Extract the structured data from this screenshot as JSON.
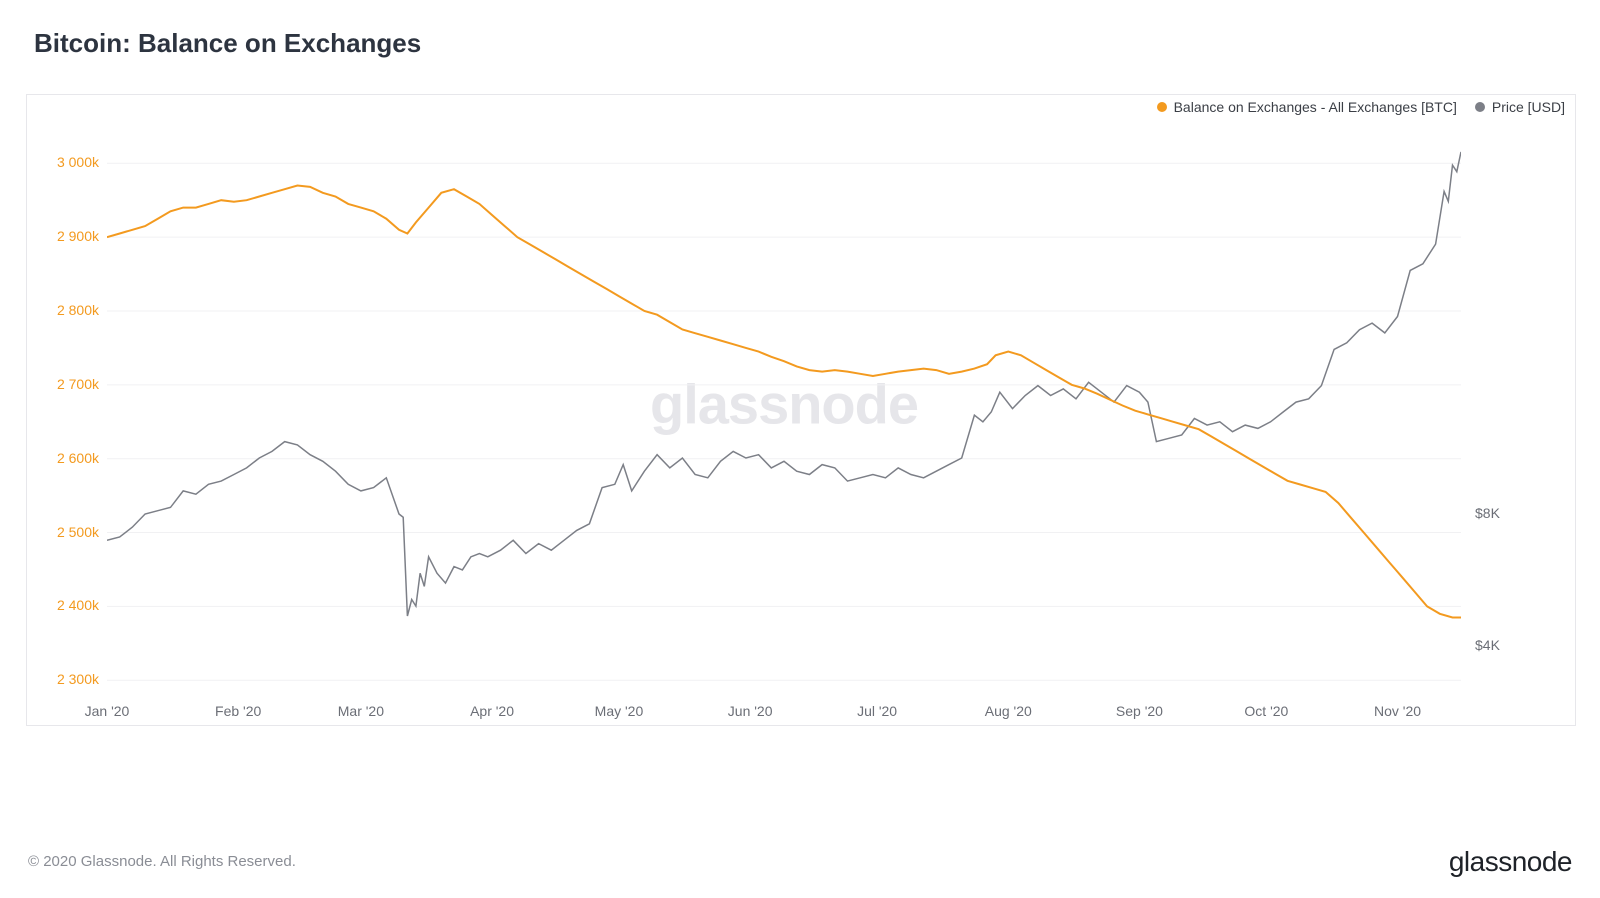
{
  "title": "Bitcoin: Balance on Exchanges",
  "watermark": "glassnode",
  "footer_copyright": "© 2020 Glassnode. All Rights Reserved.",
  "footer_brand": "glassnode",
  "legend": {
    "balance_label": "Balance on Exchanges - All Exchanges [BTC]",
    "price_label": "Price [USD]"
  },
  "chart": {
    "type": "line-dual-axis",
    "background_color": "#ffffff",
    "border_color": "#e7e7eb",
    "grid_color": "#f1f1f3",
    "balance_color": "#f39a1f",
    "price_color": "#7c7f87",
    "left_axis_label_color": "#f39a1f",
    "right_axis_label_color": "#6b6e76",
    "x_axis_label_color": "#6b6e76",
    "line_width_balance": 2,
    "line_width_price": 1.5,
    "title_fontsize": 26,
    "tick_fontsize": 14,
    "watermark_fontsize": 56,
    "watermark_color": "#e6e6ea",
    "x": {
      "min": 0,
      "max": 320,
      "ticks": [
        {
          "pos": 0,
          "label": "Jan '20"
        },
        {
          "pos": 31,
          "label": "Feb '20"
        },
        {
          "pos": 60,
          "label": "Mar '20"
        },
        {
          "pos": 91,
          "label": "Apr '20"
        },
        {
          "pos": 121,
          "label": "May '20"
        },
        {
          "pos": 152,
          "label": "Jun '20"
        },
        {
          "pos": 182,
          "label": "Jul '20"
        },
        {
          "pos": 213,
          "label": "Aug '20"
        },
        {
          "pos": 244,
          "label": "Sep '20"
        },
        {
          "pos": 274,
          "label": "Oct '20"
        },
        {
          "pos": 305,
          "label": "Nov '20"
        }
      ]
    },
    "y_left": {
      "min": 2280,
      "max": 3060,
      "ticks": [
        {
          "v": 2300,
          "label": "2 300k"
        },
        {
          "v": 2400,
          "label": "2 400k"
        },
        {
          "v": 2500,
          "label": "2 500k"
        },
        {
          "v": 2600,
          "label": "2 600k"
        },
        {
          "v": 2700,
          "label": "2 700k"
        },
        {
          "v": 2800,
          "label": "2 800k"
        },
        {
          "v": 2900,
          "label": "2 900k"
        },
        {
          "v": 3000,
          "label": "3 000k"
        }
      ]
    },
    "y_right": {
      "min": 2500,
      "max": 20000,
      "ticks": [
        {
          "v": 4000,
          "label": "$4K"
        },
        {
          "v": 8000,
          "label": "$8K"
        }
      ]
    },
    "series_balance": [
      [
        0,
        2900
      ],
      [
        3,
        2905
      ],
      [
        6,
        2910
      ],
      [
        9,
        2915
      ],
      [
        12,
        2925
      ],
      [
        15,
        2935
      ],
      [
        18,
        2940
      ],
      [
        21,
        2940
      ],
      [
        24,
        2945
      ],
      [
        27,
        2950
      ],
      [
        30,
        2948
      ],
      [
        33,
        2950
      ],
      [
        36,
        2955
      ],
      [
        39,
        2960
      ],
      [
        42,
        2965
      ],
      [
        45,
        2970
      ],
      [
        48,
        2968
      ],
      [
        51,
        2960
      ],
      [
        54,
        2955
      ],
      [
        57,
        2945
      ],
      [
        60,
        2940
      ],
      [
        63,
        2935
      ],
      [
        66,
        2925
      ],
      [
        69,
        2910
      ],
      [
        71,
        2905
      ],
      [
        73,
        2920
      ],
      [
        76,
        2940
      ],
      [
        79,
        2960
      ],
      [
        82,
        2965
      ],
      [
        85,
        2955
      ],
      [
        88,
        2945
      ],
      [
        91,
        2930
      ],
      [
        94,
        2915
      ],
      [
        97,
        2900
      ],
      [
        100,
        2890
      ],
      [
        103,
        2880
      ],
      [
        106,
        2870
      ],
      [
        109,
        2860
      ],
      [
        112,
        2850
      ],
      [
        115,
        2840
      ],
      [
        118,
        2830
      ],
      [
        121,
        2820
      ],
      [
        124,
        2810
      ],
      [
        127,
        2800
      ],
      [
        130,
        2795
      ],
      [
        133,
        2785
      ],
      [
        136,
        2775
      ],
      [
        139,
        2770
      ],
      [
        142,
        2765
      ],
      [
        145,
        2760
      ],
      [
        148,
        2755
      ],
      [
        151,
        2750
      ],
      [
        154,
        2745
      ],
      [
        157,
        2738
      ],
      [
        160,
        2732
      ],
      [
        163,
        2725
      ],
      [
        166,
        2720
      ],
      [
        169,
        2718
      ],
      [
        172,
        2720
      ],
      [
        175,
        2718
      ],
      [
        178,
        2715
      ],
      [
        181,
        2712
      ],
      [
        184,
        2715
      ],
      [
        187,
        2718
      ],
      [
        190,
        2720
      ],
      [
        193,
        2722
      ],
      [
        196,
        2720
      ],
      [
        199,
        2715
      ],
      [
        202,
        2718
      ],
      [
        205,
        2722
      ],
      [
        208,
        2728
      ],
      [
        210,
        2740
      ],
      [
        213,
        2745
      ],
      [
        216,
        2740
      ],
      [
        219,
        2730
      ],
      [
        222,
        2720
      ],
      [
        225,
        2710
      ],
      [
        228,
        2700
      ],
      [
        231,
        2695
      ],
      [
        234,
        2688
      ],
      [
        237,
        2680
      ],
      [
        240,
        2672
      ],
      [
        243,
        2665
      ],
      [
        246,
        2660
      ],
      [
        249,
        2655
      ],
      [
        252,
        2650
      ],
      [
        255,
        2645
      ],
      [
        258,
        2640
      ],
      [
        261,
        2630
      ],
      [
        264,
        2620
      ],
      [
        267,
        2610
      ],
      [
        270,
        2600
      ],
      [
        273,
        2590
      ],
      [
        276,
        2580
      ],
      [
        279,
        2570
      ],
      [
        282,
        2565
      ],
      [
        285,
        2560
      ],
      [
        288,
        2555
      ],
      [
        291,
        2540
      ],
      [
        294,
        2520
      ],
      [
        297,
        2500
      ],
      [
        300,
        2480
      ],
      [
        303,
        2460
      ],
      [
        306,
        2440
      ],
      [
        309,
        2420
      ],
      [
        312,
        2400
      ],
      [
        315,
        2390
      ],
      [
        318,
        2385
      ],
      [
        320,
        2385
      ]
    ],
    "series_price": [
      [
        0,
        7200
      ],
      [
        3,
        7300
      ],
      [
        6,
        7600
      ],
      [
        9,
        8000
      ],
      [
        12,
        8100
      ],
      [
        15,
        8200
      ],
      [
        18,
        8700
      ],
      [
        21,
        8600
      ],
      [
        24,
        8900
      ],
      [
        27,
        9000
      ],
      [
        30,
        9200
      ],
      [
        33,
        9400
      ],
      [
        36,
        9700
      ],
      [
        39,
        9900
      ],
      [
        42,
        10200
      ],
      [
        45,
        10100
      ],
      [
        48,
        9800
      ],
      [
        51,
        9600
      ],
      [
        54,
        9300
      ],
      [
        57,
        8900
      ],
      [
        60,
        8700
      ],
      [
        63,
        8800
      ],
      [
        66,
        9100
      ],
      [
        69,
        8000
      ],
      [
        70,
        7900
      ],
      [
        71,
        4900
      ],
      [
        72,
        5400
      ],
      [
        73,
        5200
      ],
      [
        74,
        6200
      ],
      [
        75,
        5800
      ],
      [
        76,
        6700
      ],
      [
        78,
        6200
      ],
      [
        80,
        5900
      ],
      [
        82,
        6400
      ],
      [
        84,
        6300
      ],
      [
        86,
        6700
      ],
      [
        88,
        6800
      ],
      [
        90,
        6700
      ],
      [
        93,
        6900
      ],
      [
        96,
        7200
      ],
      [
        99,
        6800
      ],
      [
        102,
        7100
      ],
      [
        105,
        6900
      ],
      [
        108,
        7200
      ],
      [
        111,
        7500
      ],
      [
        114,
        7700
      ],
      [
        117,
        8800
      ],
      [
        120,
        8900
      ],
      [
        122,
        9500
      ],
      [
        124,
        8700
      ],
      [
        127,
        9300
      ],
      [
        130,
        9800
      ],
      [
        133,
        9400
      ],
      [
        136,
        9700
      ],
      [
        139,
        9200
      ],
      [
        142,
        9100
      ],
      [
        145,
        9600
      ],
      [
        148,
        9900
      ],
      [
        151,
        9700
      ],
      [
        154,
        9800
      ],
      [
        157,
        9400
      ],
      [
        160,
        9600
      ],
      [
        163,
        9300
      ],
      [
        166,
        9200
      ],
      [
        169,
        9500
      ],
      [
        172,
        9400
      ],
      [
        175,
        9000
      ],
      [
        178,
        9100
      ],
      [
        181,
        9200
      ],
      [
        184,
        9100
      ],
      [
        187,
        9400
      ],
      [
        190,
        9200
      ],
      [
        193,
        9100
      ],
      [
        196,
        9300
      ],
      [
        199,
        9500
      ],
      [
        202,
        9700
      ],
      [
        205,
        11000
      ],
      [
        207,
        10800
      ],
      [
        209,
        11100
      ],
      [
        211,
        11700
      ],
      [
        214,
        11200
      ],
      [
        217,
        11600
      ],
      [
        220,
        11900
      ],
      [
        223,
        11600
      ],
      [
        226,
        11800
      ],
      [
        229,
        11500
      ],
      [
        232,
        12000
      ],
      [
        235,
        11700
      ],
      [
        238,
        11400
      ],
      [
        241,
        11900
      ],
      [
        244,
        11700
      ],
      [
        246,
        11400
      ],
      [
        248,
        10200
      ],
      [
        251,
        10300
      ],
      [
        254,
        10400
      ],
      [
        257,
        10900
      ],
      [
        260,
        10700
      ],
      [
        263,
        10800
      ],
      [
        266,
        10500
      ],
      [
        269,
        10700
      ],
      [
        272,
        10600
      ],
      [
        275,
        10800
      ],
      [
        278,
        11100
      ],
      [
        281,
        11400
      ],
      [
        284,
        11500
      ],
      [
        287,
        11900
      ],
      [
        290,
        13000
      ],
      [
        293,
        13200
      ],
      [
        296,
        13600
      ],
      [
        299,
        13800
      ],
      [
        302,
        13500
      ],
      [
        305,
        14000
      ],
      [
        308,
        15400
      ],
      [
        311,
        15600
      ],
      [
        314,
        16200
      ],
      [
        316,
        17800
      ],
      [
        317,
        17500
      ],
      [
        318,
        18600
      ],
      [
        319,
        18400
      ],
      [
        320,
        19000
      ]
    ]
  }
}
